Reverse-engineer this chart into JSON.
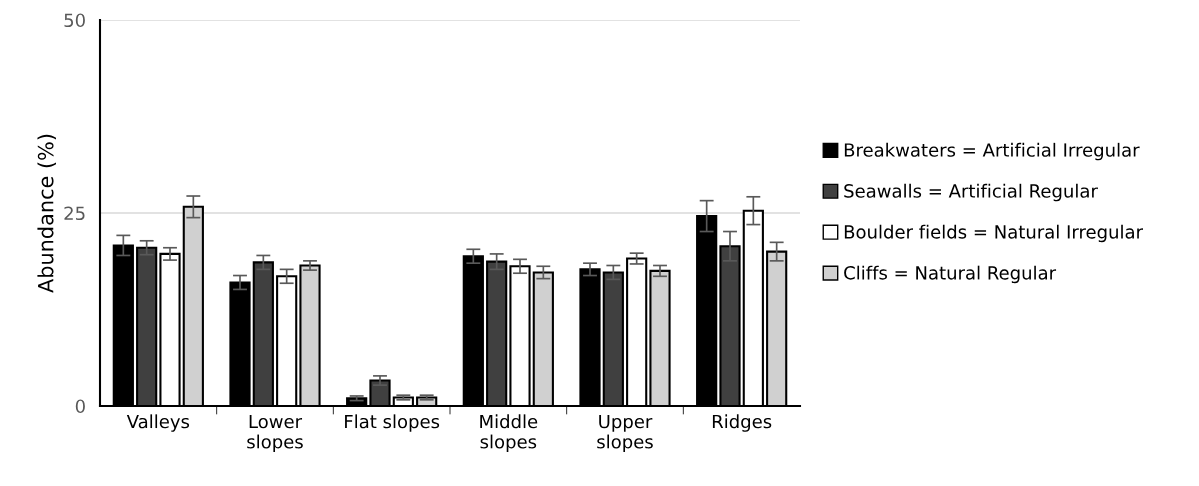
{
  "chart_data": {
    "type": "bar",
    "ylabel": "Abundance (%)",
    "categories": [
      "Valleys",
      "Lower\nslopes",
      "Flat slopes",
      "Middle\nslopes",
      "Upper\nslopes",
      "Ridges"
    ],
    "series": [
      {
        "name": "Breakwaters = Artificial Irregular",
        "color": "#000000",
        "values": [
          20.8,
          16.0,
          1.0,
          19.4,
          17.7,
          24.6
        ],
        "errors": [
          1.3,
          0.9,
          0.3,
          0.9,
          0.8,
          2.0
        ]
      },
      {
        "name": "Seawalls = Artificial Regular",
        "color": "#404040",
        "values": [
          20.5,
          18.6,
          3.3,
          18.7,
          17.3,
          20.7
        ],
        "errors": [
          0.9,
          0.9,
          0.6,
          1.0,
          0.9,
          1.9
        ]
      },
      {
        "name": "Boulder fields = Natural Irregular",
        "color": "#ffffff",
        "values": [
          19.7,
          16.8,
          1.1,
          18.1,
          19.1,
          25.3
        ],
        "errors": [
          0.8,
          0.9,
          0.3,
          0.9,
          0.7,
          1.8
        ]
      },
      {
        "name": "Cliffs = Natural Regular",
        "color": "#d0d0d0",
        "values": [
          25.8,
          18.2,
          1.1,
          17.3,
          17.5,
          20.0
        ],
        "errors": [
          1.4,
          0.6,
          0.3,
          0.8,
          0.7,
          1.2
        ]
      }
    ],
    "ylim": [
      0,
      50
    ],
    "yticks": [
      0,
      25,
      50
    ],
    "grid": "y",
    "legend": "right"
  }
}
